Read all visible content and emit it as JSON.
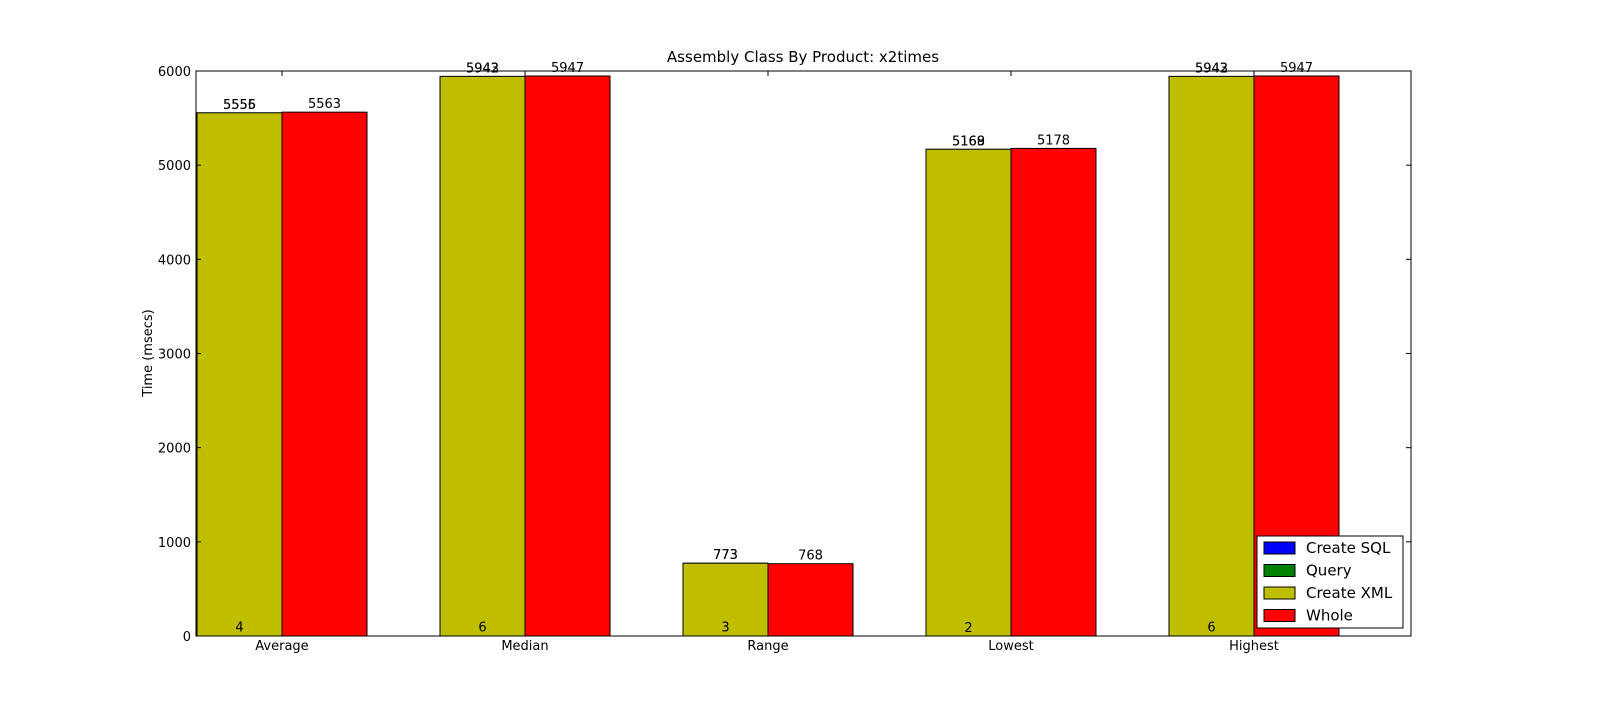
{
  "chart_data": {
    "type": "bar",
    "title": "Assembly Class By Product: x2times",
    "xlabel": "",
    "ylabel": "Time (msecs)",
    "ylim": [
      0,
      6000
    ],
    "yticks": [
      0,
      1000,
      2000,
      3000,
      4000,
      5000,
      6000
    ],
    "categories": [
      "Average",
      "Median",
      "Range",
      "Lowest",
      "Highest"
    ],
    "series": [
      {
        "name": "Create SQL",
        "color": "#0000ff",
        "values": [
          4,
          6,
          3,
          2,
          6
        ],
        "bar_slot": 0
      },
      {
        "name": "Query",
        "color": "#008000",
        "values": [
          5555,
          5942,
          773,
          5168,
          5942
        ],
        "bar_slot": 0
      },
      {
        "name": "Create XML",
        "color": "#bfbf00",
        "values": [
          5556,
          5943,
          773,
          5169,
          5943
        ],
        "bar_slot": 0
      },
      {
        "name": "Whole",
        "color": "#ff0000",
        "values": [
          5563,
          5947,
          768,
          5178,
          5947
        ],
        "bar_slot": 1
      }
    ],
    "legend_position": "lower-right",
    "grid": false
  }
}
